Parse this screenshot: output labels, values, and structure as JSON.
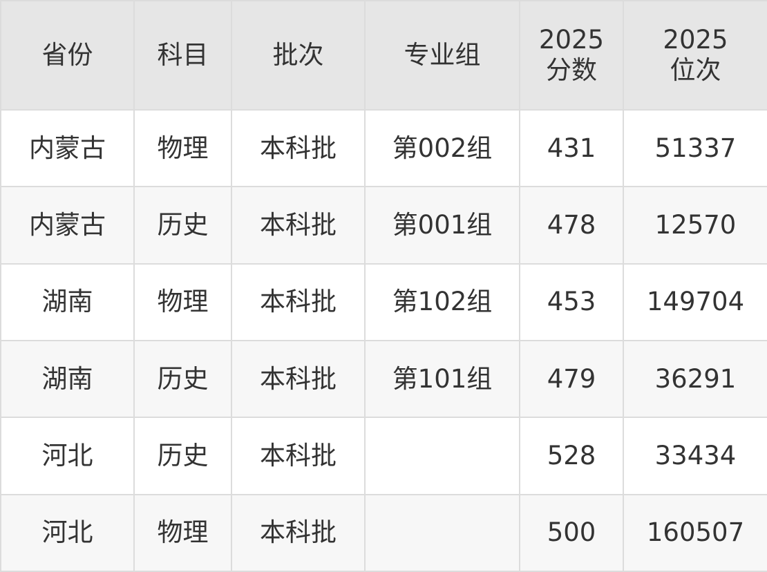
{
  "table": {
    "header": [
      "省份",
      "科目",
      "批次",
      "专业组",
      [
        "2025",
        "分数"
      ],
      [
        "2025",
        "位次"
      ]
    ],
    "rows": [
      [
        "内蒙古",
        "物理",
        "本科批",
        "第002组",
        431,
        51337
      ],
      [
        "内蒙古",
        "历史",
        "本科批",
        "第001组",
        478,
        12570
      ],
      [
        "湖南",
        "物理",
        "本科批",
        "第102组",
        453,
        149704
      ],
      [
        "湖南",
        "历史",
        "本科批",
        "第101组",
        479,
        36291
      ],
      [
        "河北",
        "历史",
        "本科批",
        null,
        528,
        33434
      ],
      [
        "河北",
        "物理",
        "本科批",
        null,
        500,
        160507
      ]
    ]
  }
}
